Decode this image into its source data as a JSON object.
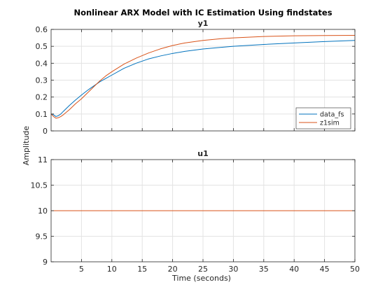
{
  "figure": {
    "title": "Nonlinear ARX Model with IC Estimation Using findstates",
    "xlabel": "Time (seconds)",
    "ylabel": "Amplitude"
  },
  "chart_data": [
    {
      "type": "line",
      "title": "y1",
      "xlim": [
        0,
        50
      ],
      "ylim": [
        0,
        0.6
      ],
      "xticks": [
        5,
        10,
        15,
        20,
        25,
        30,
        35,
        40,
        45,
        50
      ],
      "xtick_labels_visible": false,
      "yticks": [
        0,
        0.1,
        0.2,
        0.3,
        0.4,
        0.5,
        0.6
      ],
      "ytick_labels": [
        "0",
        "0.1",
        "0.2",
        "0.3",
        "0.4",
        "0.5",
        "0.6"
      ],
      "grid": true,
      "legend_position": "lower-right",
      "series": [
        {
          "name": "data_fs",
          "color": "#0072BD",
          "x": [
            0,
            0.4,
            0.8,
            1.2,
            1.6,
            2,
            3,
            4,
            5,
            6,
            7,
            8,
            9,
            10,
            12,
            14,
            16,
            18,
            20,
            22,
            25,
            28,
            30,
            35,
            40,
            45,
            50
          ],
          "y": [
            0.1,
            0.095,
            0.085,
            0.09,
            0.1,
            0.115,
            0.15,
            0.182,
            0.212,
            0.24,
            0.265,
            0.29,
            0.31,
            0.33,
            0.37,
            0.4,
            0.425,
            0.443,
            0.458,
            0.47,
            0.484,
            0.494,
            0.5,
            0.511,
            0.52,
            0.528,
            0.535
          ]
        },
        {
          "name": "z1sim",
          "color": "#D95319",
          "x": [
            0,
            0.4,
            0.8,
            1.2,
            1.6,
            2,
            3,
            4,
            5,
            6,
            7,
            8,
            9,
            10,
            12,
            14,
            16,
            18,
            20,
            22,
            25,
            28,
            30,
            35,
            40,
            45,
            50
          ],
          "y": [
            0.1,
            0.085,
            0.075,
            0.078,
            0.085,
            0.095,
            0.125,
            0.16,
            0.19,
            0.225,
            0.26,
            0.295,
            0.325,
            0.35,
            0.395,
            0.43,
            0.46,
            0.485,
            0.505,
            0.52,
            0.535,
            0.545,
            0.55,
            0.558,
            0.562,
            0.564,
            0.565
          ]
        }
      ]
    },
    {
      "type": "line",
      "title": "u1",
      "xlim": [
        0,
        50
      ],
      "ylim": [
        9,
        11
      ],
      "xticks": [
        5,
        10,
        15,
        20,
        25,
        30,
        35,
        40,
        45,
        50
      ],
      "xtick_labels": [
        "5",
        "10",
        "15",
        "20",
        "25",
        "30",
        "35",
        "40",
        "45",
        "50"
      ],
      "yticks": [
        9,
        9.5,
        10,
        10.5,
        11
      ],
      "ytick_labels": [
        "9",
        "9.5",
        "10",
        "10.5",
        "11"
      ],
      "grid": true,
      "series": [
        {
          "color": "#0072BD",
          "x": [
            0,
            50
          ],
          "y": [
            10,
            10
          ]
        },
        {
          "color": "#D95319",
          "x": [
            0,
            50
          ],
          "y": [
            10,
            10
          ]
        }
      ]
    }
  ]
}
